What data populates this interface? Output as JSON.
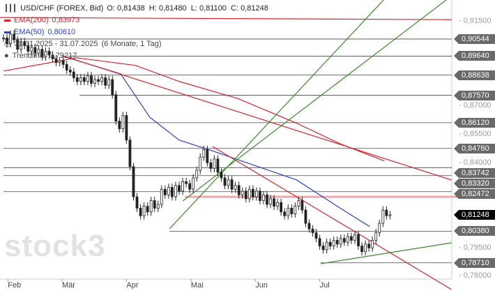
{
  "header": {
    "symbol": "USD/CHF (FOREX, Bid)",
    "ohlc": "O: 0,81438  H: 0,81480  L: 0,81100  C: 0,81248"
  },
  "legend": [
    {
      "label": "EMA(200)",
      "value": "0,83973",
      "color": "#e0202a"
    },
    {
      "label": "EMA(50)",
      "value": "0,80610",
      "color": "#2a3fd0"
    },
    {
      "label": "31.01.2025 - 31.07.2025",
      "value": "(6 Monate, 1 Tag)",
      "color": "#444444"
    },
    {
      "label": "Trendlinie",
      "value": "0,79217",
      "color": "#444444"
    }
  ],
  "watermark": "stock3",
  "chart_data": {
    "type": "candlestick",
    "title": "USD/CHF (FOREX, Bid)",
    "ylim": [
      0.7725,
      0.9185
    ],
    "y_ticks": [
      "0,91500",
      "0,87000",
      "0,85500",
      "0,84000",
      "0,79500",
      "0,78000"
    ],
    "y_tick_values": [
      0.915,
      0.87,
      0.855,
      0.84,
      0.795,
      0.78
    ],
    "x_labels": [
      "Feb",
      "Mär",
      "Apr",
      "Mai",
      "Jun",
      "Jul"
    ],
    "x_label_days": [
      1.5,
      20,
      42,
      64,
      86,
      108
    ],
    "closes": [
      0.906,
      0.903,
      0.908,
      0.905,
      0.9,
      0.904,
      0.902,
      0.899,
      0.901,
      0.898,
      0.9,
      0.896,
      0.899,
      0.897,
      0.895,
      0.893,
      0.894,
      0.892,
      0.889,
      0.888,
      0.885,
      0.883,
      0.885,
      0.883,
      0.886,
      0.882,
      0.884,
      0.883,
      0.885,
      0.881,
      0.884,
      0.876,
      0.862,
      0.858,
      0.865,
      0.852,
      0.838,
      0.822,
      0.816,
      0.812,
      0.817,
      0.814,
      0.82,
      0.816,
      0.818,
      0.826,
      0.823,
      0.827,
      0.822,
      0.828,
      0.825,
      0.83,
      0.829,
      0.826,
      0.832,
      0.836,
      0.843,
      0.847,
      0.84,
      0.837,
      0.842,
      0.835,
      0.832,
      0.828,
      0.831,
      0.826,
      0.828,
      0.823,
      0.825,
      0.821,
      0.826,
      0.822,
      0.825,
      0.82,
      0.823,
      0.818,
      0.821,
      0.817,
      0.819,
      0.814,
      0.812,
      0.816,
      0.813,
      0.817,
      0.82,
      0.815,
      0.808,
      0.805,
      0.803,
      0.8,
      0.796,
      0.794,
      0.798,
      0.796,
      0.799,
      0.797,
      0.8,
      0.798,
      0.801,
      0.799,
      0.802,
      0.796,
      0.793,
      0.797,
      0.795,
      0.799,
      0.803,
      0.808,
      0.815,
      0.812,
      0.8125
    ],
    "ema200": [
      [
        0,
        0.8885
      ],
      [
        25,
        0.8955
      ],
      [
        45,
        0.8915
      ],
      [
        60,
        0.883
      ],
      [
        80,
        0.874
      ],
      [
        100,
        0.861
      ],
      [
        115,
        0.85
      ],
      [
        130,
        0.841
      ]
    ],
    "ema50": [
      [
        20,
        0.8965
      ],
      [
        40,
        0.887
      ],
      [
        50,
        0.864
      ],
      [
        60,
        0.852
      ],
      [
        70,
        0.847
      ],
      [
        85,
        0.839
      ],
      [
        100,
        0.831
      ],
      [
        115,
        0.816
      ],
      [
        125,
        0.8063
      ]
    ],
    "levels": [
      {
        "price": 0.90544,
        "label": "0,90544",
        "from_day": 0
      },
      {
        "price": 0.8964,
        "label": "0,89640",
        "from_day": 22
      },
      {
        "price": 0.88638,
        "label": "0,88638",
        "from_day": 0
      },
      {
        "price": 0.8757,
        "label": "0,87570",
        "from_day": 26
      },
      {
        "price": 0.8612,
        "label": "0,86120",
        "from_day": 0
      },
      {
        "price": 0.8476,
        "label": "0,84760",
        "from_day": 0
      },
      {
        "price": 0.83742,
        "label": "0,83742",
        "from_day": 0
      },
      {
        "price": 0.8332,
        "label": "0,83320",
        "from_day": 0
      },
      {
        "price": 0.82472,
        "label": "0,82472",
        "from_day": 0
      },
      {
        "price": 0.8038,
        "label": "0,80380",
        "from_day": 56.7
      },
      {
        "price": 0.7871,
        "label": "0,78710",
        "from_day": 108.3
      }
    ],
    "current": {
      "price": 0.81248,
      "label": "0,81248"
    },
    "zone": {
      "price": 0.822,
      "from_day": 62
    },
    "trendlines": [
      {
        "color": "#e0202a",
        "p": [
          [
            -1.2,
            0.9168
          ],
          [
            153,
            0.9157
          ]
        ]
      },
      {
        "color": "#e0202a",
        "p": [
          [
            20.2,
            0.8966
          ],
          [
            153,
            0.8309
          ]
        ]
      },
      {
        "color": "#e0202a",
        "p": [
          [
            71.4,
            0.8486
          ],
          [
            153,
            0.773
          ]
        ]
      },
      {
        "color": "#3a8a2a",
        "p": [
          [
            56.7,
            0.8051
          ],
          [
            129.8,
            0.9261
          ]
        ]
      },
      {
        "color": "#3a8a2a",
        "p": [
          [
            61.2,
            0.8198
          ],
          [
            151.2,
            0.9261
          ]
        ]
      },
      {
        "color": "#3a8a2a",
        "p": [
          [
            108.3,
            0.7866
          ],
          [
            153,
            0.7977
          ]
        ]
      }
    ]
  }
}
